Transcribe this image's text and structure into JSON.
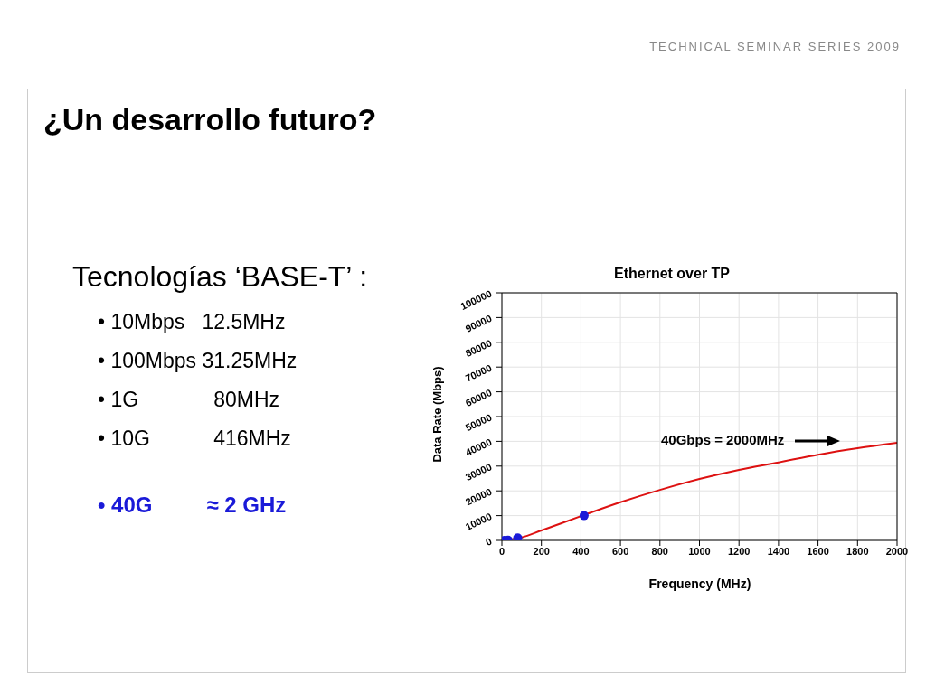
{
  "chart_data": {
    "type": "line",
    "title": "Ethernet over TP",
    "xlabel": "Frequency (MHz)",
    "ylabel": "Data Rate (Mbps)",
    "xlim": [
      0,
      2000
    ],
    "xticks": [
      0,
      200,
      400,
      600,
      800,
      1000,
      1200,
      1400,
      1600,
      1800,
      2000
    ],
    "ylim": [
      0,
      100000
    ],
    "yticks": [
      0,
      10000,
      20000,
      30000,
      40000,
      50000,
      60000,
      70000,
      80000,
      90000,
      100000
    ],
    "grid": true,
    "series": [
      {
        "type": "line",
        "color": "#dd1111",
        "x": [
          0,
          100,
          200,
          400,
          600,
          800,
          1000,
          1200,
          1400,
          1600,
          1800,
          2000
        ],
        "values": [
          0,
          1200,
          4000,
          9800,
          15400,
          20400,
          24800,
          28500,
          31500,
          34600,
          37200,
          39400
        ]
      },
      {
        "type": "scatter",
        "color": "#1a1ad8",
        "marker": "circle",
        "x": [
          12.5,
          31.25,
          80,
          416
        ],
        "values": [
          10,
          100,
          1000,
          10000
        ]
      }
    ],
    "annotations": [
      "TECHNICAL SEMINAR SERIES 2009",
      "¿Un desarrollo futuro?",
      "Tecnologías ‘BASE-T’ :",
      "• 10Mbps   12.5MHz",
      "• 100Mbps 31.25MHz",
      "• 1G             80MHz",
      "• 10G           416MHz",
      "• 40G         ≈ 2 GHz",
      "40Gbps = 2000MHz"
    ]
  }
}
